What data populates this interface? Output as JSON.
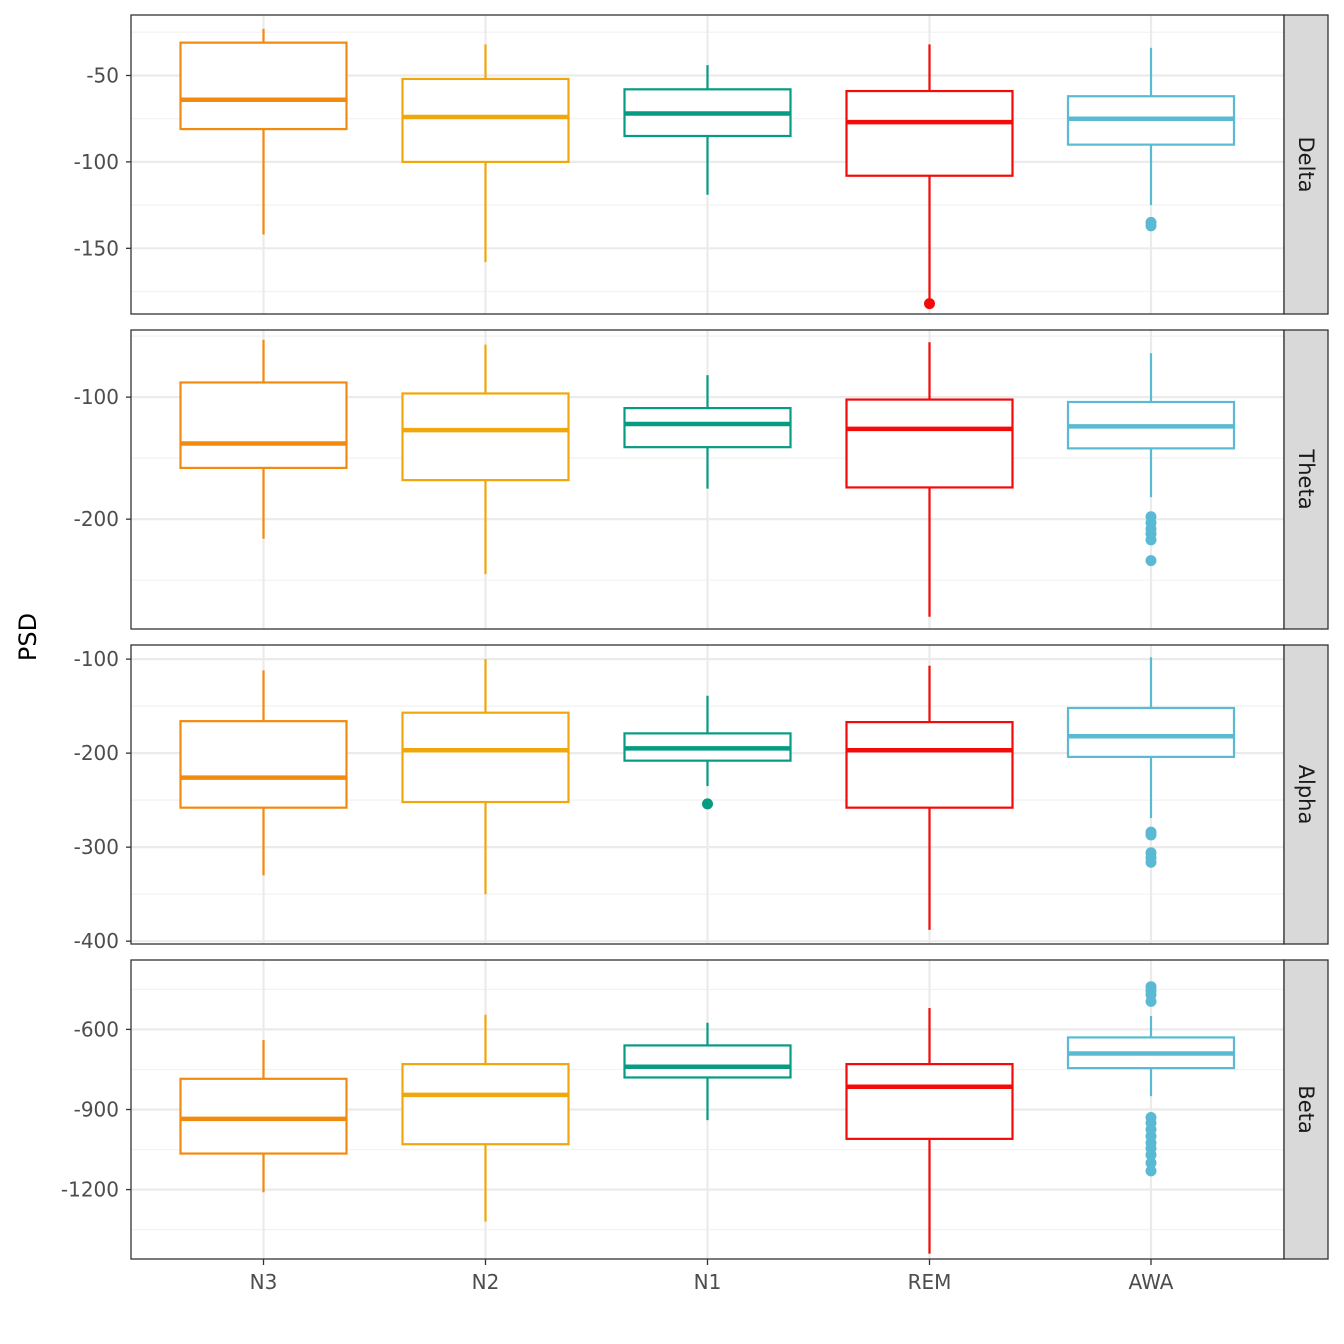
{
  "chart_data": {
    "type": "boxplot",
    "ylabel": "PSD",
    "xlabel": "",
    "categories": [
      "N3",
      "N2",
      "N1",
      "REM",
      "AWA"
    ],
    "colors": {
      "N3": "#f28a0e",
      "N2": "#f0a70c",
      "N1": "#069c83",
      "REM": "#f50a0a",
      "AWA": "#5bbad3"
    },
    "grid": true,
    "facet_layout": "rows, strip labels on right",
    "facets": [
      {
        "label": "Delta",
        "ylim": [
          -188,
          -15
        ],
        "y_ticks": [
          -50,
          -100,
          -150
        ],
        "y_tick_labels": [
          "-50",
          "-100",
          "-150"
        ],
        "boxes": [
          {
            "category": "N3",
            "lower_whisker": -142,
            "q1": -81,
            "median": -64,
            "q3": -31,
            "upper_whisker": -23,
            "outliers": []
          },
          {
            "category": "N2",
            "lower_whisker": -158,
            "q1": -100,
            "median": -74,
            "q3": -52,
            "upper_whisker": -32,
            "outliers": []
          },
          {
            "category": "N1",
            "lower_whisker": -119,
            "q1": -85,
            "median": -72,
            "q3": -58,
            "upper_whisker": -44,
            "outliers": []
          },
          {
            "category": "REM",
            "lower_whisker": -182,
            "q1": -108,
            "median": -77,
            "q3": -59,
            "upper_whisker": -32,
            "outliers": [
              -182
            ]
          },
          {
            "category": "AWA",
            "lower_whisker": -125,
            "q1": -90,
            "median": -75,
            "q3": -62,
            "upper_whisker": -34,
            "outliers": [
              -135,
              -137
            ]
          }
        ]
      },
      {
        "label": "Theta",
        "ylim": [
          -290,
          -45
        ],
        "y_ticks": [
          -100,
          -200
        ],
        "y_tick_labels": [
          "-100",
          "-200"
        ],
        "boxes": [
          {
            "category": "N3",
            "lower_whisker": -216,
            "q1": -158,
            "median": -138,
            "q3": -88,
            "upper_whisker": -53,
            "outliers": []
          },
          {
            "category": "N2",
            "lower_whisker": -245,
            "q1": -168,
            "median": -127,
            "q3": -97,
            "upper_whisker": -57,
            "outliers": []
          },
          {
            "category": "N1",
            "lower_whisker": -175,
            "q1": -141,
            "median": -122,
            "q3": -109,
            "upper_whisker": -82,
            "outliers": []
          },
          {
            "category": "REM",
            "lower_whisker": -280,
            "q1": -174,
            "median": -126,
            "q3": -102,
            "upper_whisker": -55,
            "outliers": []
          },
          {
            "category": "AWA",
            "lower_whisker": -182,
            "q1": -142,
            "median": -124,
            "q3": -104,
            "upper_whisker": -64,
            "outliers": [
              -198,
              -203,
              -208,
              -212,
              -217,
              -234
            ]
          }
        ]
      },
      {
        "label": "Alpha",
        "ylim": [
          -403,
          -85
        ],
        "y_ticks": [
          -100,
          -200,
          -300,
          -400
        ],
        "y_tick_labels": [
          "-100",
          "-200",
          "-300",
          "-400"
        ],
        "boxes": [
          {
            "category": "N3",
            "lower_whisker": -330,
            "q1": -258,
            "median": -226,
            "q3": -166,
            "upper_whisker": -112,
            "outliers": []
          },
          {
            "category": "N2",
            "lower_whisker": -350,
            "q1": -252,
            "median": -197,
            "q3": -157,
            "upper_whisker": -100,
            "outliers": []
          },
          {
            "category": "N1",
            "lower_whisker": -235,
            "q1": -208,
            "median": -195,
            "q3": -179,
            "upper_whisker": -139,
            "outliers": [
              -254
            ]
          },
          {
            "category": "REM",
            "lower_whisker": -388,
            "q1": -258,
            "median": -197,
            "q3": -167,
            "upper_whisker": -107,
            "outliers": []
          },
          {
            "category": "AWA",
            "lower_whisker": -269,
            "q1": -204,
            "median": -182,
            "q3": -152,
            "upper_whisker": -98,
            "outliers": [
              -284,
              -287,
              -306,
              -311,
              -316
            ]
          }
        ]
      },
      {
        "label": "Beta",
        "ylim": [
          -1460,
          -340
        ],
        "y_ticks": [
          -600,
          -900,
          -1200
        ],
        "y_tick_labels": [
          "-600",
          "-900",
          "-1200"
        ],
        "boxes": [
          {
            "category": "N3",
            "lower_whisker": -1210,
            "q1": -1065,
            "median": -935,
            "q3": -785,
            "upper_whisker": -640,
            "outliers": []
          },
          {
            "category": "N2",
            "lower_whisker": -1320,
            "q1": -1030,
            "median": -845,
            "q3": -730,
            "upper_whisker": -545,
            "outliers": []
          },
          {
            "category": "N1",
            "lower_whisker": -940,
            "q1": -780,
            "median": -740,
            "q3": -660,
            "upper_whisker": -575,
            "outliers": []
          },
          {
            "category": "REM",
            "lower_whisker": -1440,
            "q1": -1010,
            "median": -815,
            "q3": -730,
            "upper_whisker": -520,
            "outliers": []
          },
          {
            "category": "AWA",
            "lower_whisker": -850,
            "q1": -745,
            "median": -690,
            "q3": -630,
            "upper_whisker": -550,
            "outliers": [
              -440,
              -455,
              -470,
              -495,
              -930,
              -950,
              -975,
              -1000,
              -1025,
              -1045,
              -1070,
              -1100,
              -1130
            ]
          }
        ]
      }
    ]
  }
}
